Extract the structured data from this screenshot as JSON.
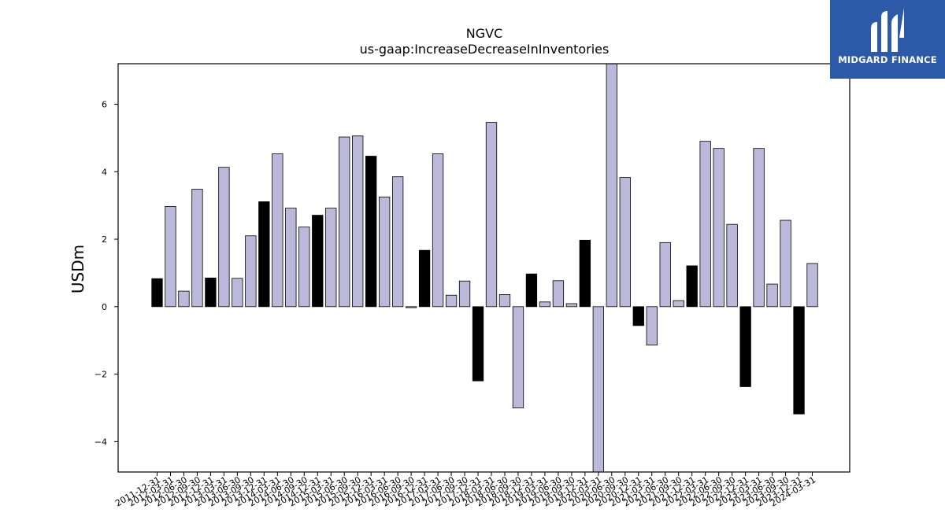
{
  "chart_data": {
    "type": "bar",
    "title": "NGVC",
    "subtitle": "us-gaap:IncreaseDecreaseInInventories",
    "xlabel": "",
    "ylabel": "USDm",
    "ylim": [
      -4.9,
      7.2
    ],
    "yticks": [
      -4,
      -2,
      0,
      2,
      4,
      6
    ],
    "colors": {
      "quarter": "#bcb8d9",
      "fiscal_year_end": "#000000",
      "edge": "#000000"
    },
    "categories": [
      "2011-12-31",
      "2012-03-31",
      "2012-06-30",
      "2012-09-30",
      "2012-12-31",
      "2013-03-31",
      "2013-06-30",
      "2013-09-30",
      "2013-12-31",
      "2014-03-31",
      "2014-06-30",
      "2014-09-30",
      "2014-12-31",
      "2015-03-31",
      "2015-06-30",
      "2015-09-30",
      "2015-12-31",
      "2016-03-31",
      "2016-06-30",
      "2016-09-30",
      "2016-12-31",
      "2017-03-31",
      "2017-06-30",
      "2017-09-30",
      "2017-12-31",
      "2018-03-31",
      "2018-06-30",
      "2018-09-30",
      "2018-12-31",
      "2019-03-31",
      "2019-06-30",
      "2019-09-30",
      "2019-12-31",
      "2020-03-31",
      "2020-06-30",
      "2020-09-30",
      "2020-12-31",
      "2021-03-31",
      "2021-06-30",
      "2021-09-30",
      "2021-12-31",
      "2022-03-31",
      "2022-06-30",
      "2022-09-30",
      "2022-12-31",
      "2023-03-31",
      "2023-06-30",
      "2023-09-30",
      "2023-12-31",
      "2024-03-31"
    ],
    "values": [
      0.83,
      2.97,
      0.46,
      3.48,
      0.85,
      4.13,
      0.84,
      2.1,
      3.11,
      4.53,
      2.92,
      2.36,
      2.71,
      2.92,
      5.03,
      5.06,
      4.46,
      3.25,
      3.85,
      -0.03,
      1.67,
      4.53,
      0.34,
      0.76,
      -2.2,
      5.46,
      0.36,
      -3.0,
      0.97,
      0.14,
      0.77,
      0.09,
      1.97,
      -4.9,
      7.2,
      3.83,
      -0.56,
      -1.14,
      1.9,
      0.18,
      1.21,
      4.9,
      4.69,
      2.44,
      -2.37,
      4.69,
      0.67,
      2.56,
      -3.18,
      1.28
    ],
    "fiscal_year_end": [
      0,
      4,
      8,
      12,
      16,
      20,
      24,
      28,
      32,
      36,
      40,
      44,
      48
    ]
  },
  "logo": {
    "text": "MIDGARD FINANCE",
    "icon": "midgard-logo-icon"
  }
}
